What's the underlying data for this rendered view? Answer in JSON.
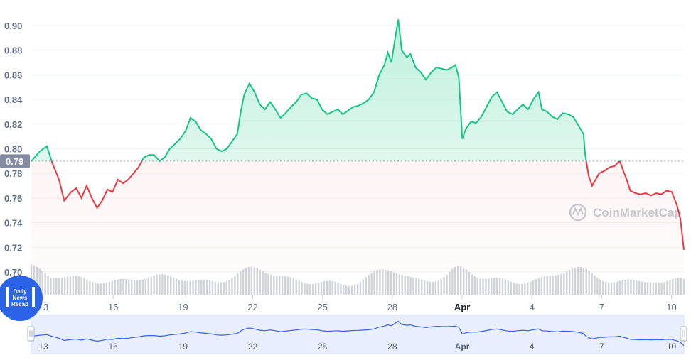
{
  "chart_data": {
    "type": "area",
    "y_ticks": [
      "0.70",
      "0.72",
      "0.74",
      "0.76",
      "0.78",
      "0.80",
      "0.82",
      "0.84",
      "0.86",
      "0.88",
      "0.90"
    ],
    "ylim": [
      0.7,
      0.9075
    ],
    "x_ticks": [
      "13",
      "16",
      "19",
      "22",
      "25",
      "28",
      "Apr",
      "4",
      "7",
      "10"
    ],
    "reference_value": 0.79,
    "reference_label": "0.79",
    "colors": {
      "up_line": "#16c784",
      "down_line": "#ea3943",
      "navigator_line": "#3861fb",
      "volume": "#cfd3da",
      "reference_label_bg": "#858ca2"
    },
    "series": [
      {
        "points": [
          [
            0.0,
            0.79
          ],
          [
            0.5,
            0.798
          ],
          [
            0.9,
            0.802
          ],
          [
            1.2,
            0.789
          ],
          [
            1.6,
            0.775
          ],
          [
            1.9,
            0.758
          ],
          [
            2.3,
            0.765
          ],
          [
            2.6,
            0.768
          ],
          [
            2.9,
            0.76
          ],
          [
            3.2,
            0.77
          ],
          [
            3.5,
            0.76
          ],
          [
            3.8,
            0.752
          ],
          [
            4.1,
            0.758
          ],
          [
            4.4,
            0.767
          ],
          [
            4.7,
            0.765
          ],
          [
            5.0,
            0.775
          ],
          [
            5.3,
            0.772
          ],
          [
            5.6,
            0.775
          ],
          [
            5.9,
            0.78
          ],
          [
            6.2,
            0.785
          ],
          [
            6.5,
            0.793
          ],
          [
            6.8,
            0.795
          ],
          [
            7.1,
            0.795
          ],
          [
            7.4,
            0.79
          ],
          [
            7.7,
            0.793
          ],
          [
            8.0,
            0.8
          ],
          [
            8.3,
            0.804
          ],
          [
            8.6,
            0.808
          ],
          [
            8.9,
            0.814
          ],
          [
            9.2,
            0.825
          ],
          [
            9.5,
            0.822
          ],
          [
            9.8,
            0.815
          ],
          [
            10.1,
            0.812
          ],
          [
            10.4,
            0.808
          ],
          [
            10.7,
            0.8
          ],
          [
            11.0,
            0.798
          ],
          [
            11.3,
            0.8
          ],
          [
            11.6,
            0.806
          ],
          [
            11.9,
            0.812
          ],
          [
            12.1,
            0.83
          ],
          [
            12.3,
            0.844
          ],
          [
            12.6,
            0.853
          ],
          [
            12.9,
            0.846
          ],
          [
            13.2,
            0.836
          ],
          [
            13.5,
            0.832
          ],
          [
            13.8,
            0.838
          ],
          [
            14.1,
            0.832
          ],
          [
            14.4,
            0.825
          ],
          [
            14.7,
            0.829
          ],
          [
            15.0,
            0.834
          ],
          [
            15.3,
            0.838
          ],
          [
            15.6,
            0.844
          ],
          [
            15.9,
            0.845
          ],
          [
            16.2,
            0.841
          ],
          [
            16.5,
            0.84
          ],
          [
            16.8,
            0.832
          ],
          [
            17.1,
            0.828
          ],
          [
            17.4,
            0.83
          ],
          [
            17.7,
            0.832
          ],
          [
            18.0,
            0.828
          ],
          [
            18.3,
            0.831
          ],
          [
            18.6,
            0.834
          ],
          [
            18.9,
            0.835
          ],
          [
            19.2,
            0.837
          ],
          [
            19.5,
            0.84
          ],
          [
            19.8,
            0.846
          ],
          [
            20.1,
            0.86
          ],
          [
            20.4,
            0.868
          ],
          [
            20.6,
            0.878
          ],
          [
            20.8,
            0.87
          ],
          [
            21.0,
            0.888
          ],
          [
            21.2,
            0.905
          ],
          [
            21.4,
            0.88
          ],
          [
            21.7,
            0.874
          ],
          [
            21.9,
            0.877
          ],
          [
            22.2,
            0.866
          ],
          [
            22.5,
            0.862
          ],
          [
            22.8,
            0.856
          ],
          [
            23.1,
            0.862
          ],
          [
            23.4,
            0.866
          ],
          [
            23.7,
            0.865
          ],
          [
            24.0,
            0.864
          ],
          [
            24.3,
            0.866
          ],
          [
            24.5,
            0.868
          ],
          [
            24.7,
            0.858
          ],
          [
            24.9,
            0.808
          ],
          [
            25.1,
            0.816
          ],
          [
            25.4,
            0.822
          ],
          [
            25.7,
            0.821
          ],
          [
            26.0,
            0.826
          ],
          [
            26.3,
            0.834
          ],
          [
            26.6,
            0.842
          ],
          [
            26.9,
            0.846
          ],
          [
            27.2,
            0.838
          ],
          [
            27.5,
            0.83
          ],
          [
            27.8,
            0.828
          ],
          [
            28.1,
            0.832
          ],
          [
            28.4,
            0.836
          ],
          [
            28.7,
            0.832
          ],
          [
            29.0,
            0.84
          ],
          [
            29.3,
            0.846
          ],
          [
            29.5,
            0.832
          ],
          [
            29.8,
            0.83
          ],
          [
            30.1,
            0.826
          ],
          [
            30.4,
            0.824
          ],
          [
            30.7,
            0.829
          ],
          [
            31.0,
            0.828
          ],
          [
            31.3,
            0.826
          ],
          [
            31.6,
            0.819
          ],
          [
            31.9,
            0.812
          ],
          [
            32.0,
            0.795
          ],
          [
            32.2,
            0.778
          ],
          [
            32.4,
            0.77
          ],
          [
            32.6,
            0.775
          ],
          [
            32.8,
            0.78
          ],
          [
            33.1,
            0.782
          ],
          [
            33.4,
            0.785
          ],
          [
            33.7,
            0.786
          ],
          [
            33.9,
            0.789
          ],
          [
            34.0,
            0.79
          ],
          [
            34.2,
            0.782
          ],
          [
            34.4,
            0.775
          ],
          [
            34.6,
            0.766
          ],
          [
            34.9,
            0.764
          ],
          [
            35.2,
            0.763
          ],
          [
            35.5,
            0.764
          ],
          [
            35.8,
            0.762
          ],
          [
            36.1,
            0.764
          ],
          [
            36.4,
            0.763
          ],
          [
            36.7,
            0.766
          ],
          [
            37.0,
            0.765
          ],
          [
            37.3,
            0.754
          ],
          [
            37.5,
            0.743
          ],
          [
            37.7,
            0.718
          ]
        ]
      }
    ]
  }
}
